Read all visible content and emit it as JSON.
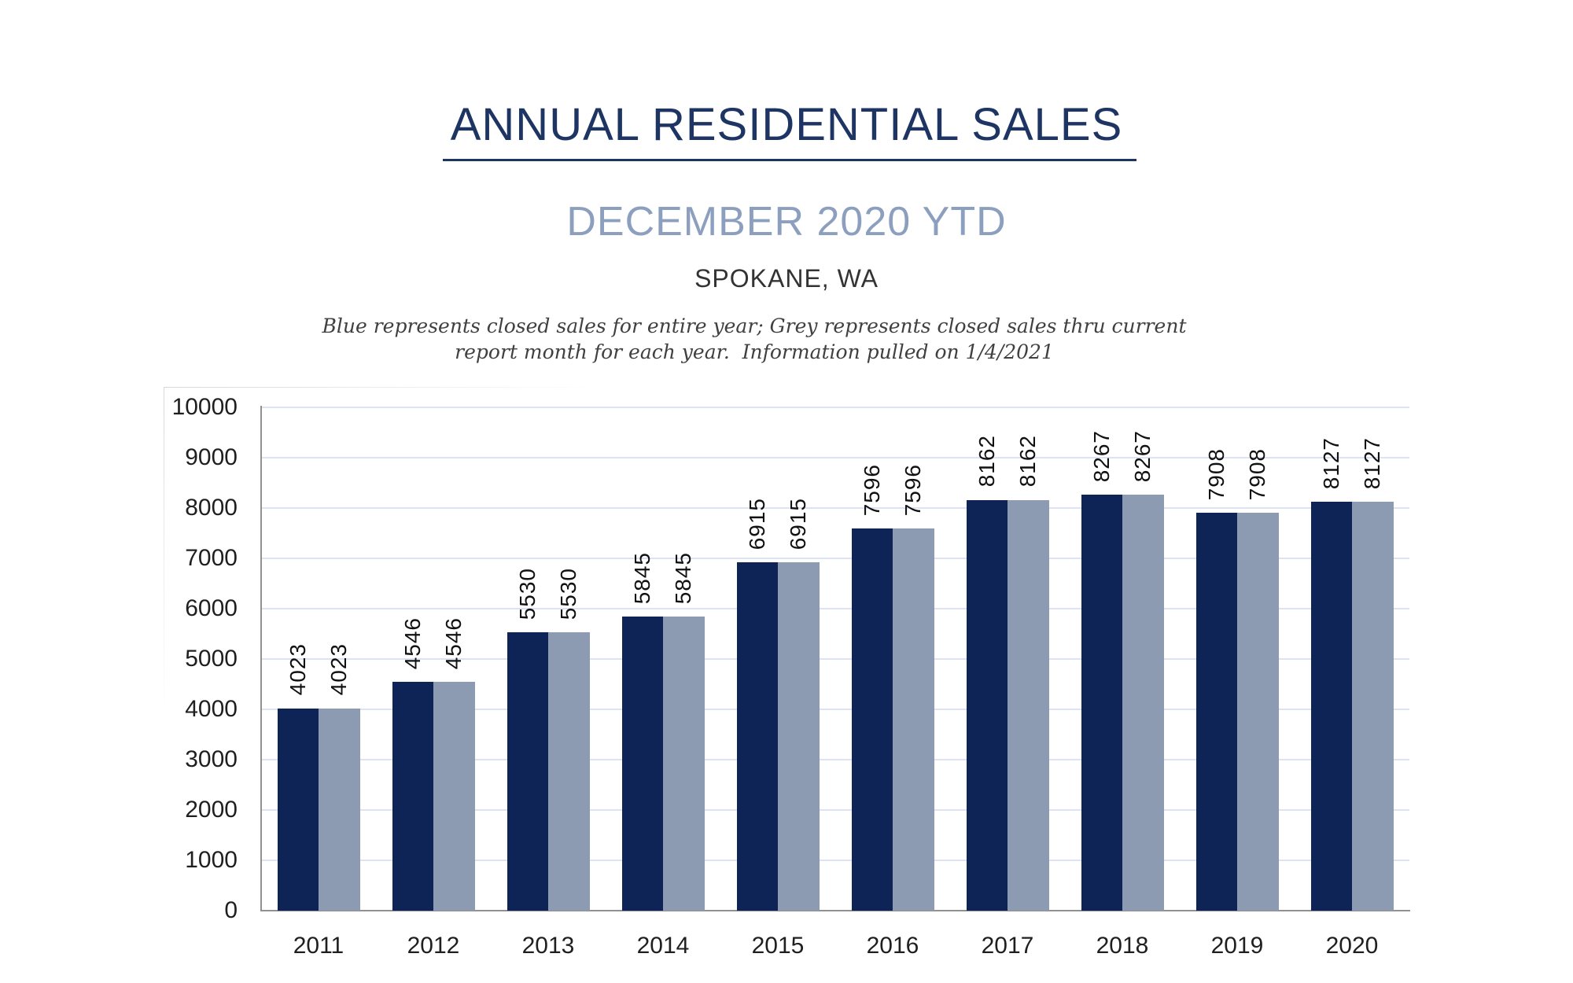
{
  "header": {
    "title": "ANNUAL RESIDENTIAL SALES",
    "subtitle": "DECEMBER 2020 YTD",
    "location": "SPOKANE, WA",
    "note_line1": "Blue represents closed sales for entire year; Grey represents closed sales thru current",
    "note_line2": "report month for each year.  Information pulled on 1/4/2021"
  },
  "chart_data": {
    "type": "bar",
    "title": "ANNUAL RESIDENTIAL SALES",
    "subtitle": "DECEMBER 2020 YTD",
    "region": "SPOKANE, WA",
    "categories": [
      "2011",
      "2012",
      "2013",
      "2014",
      "2015",
      "2016",
      "2017",
      "2018",
      "2019",
      "2020"
    ],
    "series": [
      {
        "name": "Closed sales for entire year (Blue)",
        "color": "#0E2356",
        "values": [
          4023,
          4546,
          5530,
          5845,
          6915,
          7596,
          8162,
          8267,
          7908,
          8127
        ]
      },
      {
        "name": "Closed sales thru current report month (Grey)",
        "color": "#8C9BB1",
        "values": [
          4023,
          4546,
          5530,
          5845,
          6915,
          7596,
          8162,
          8267,
          7908,
          8127
        ]
      }
    ],
    "data_labels": true,
    "data_label_rotation": 90,
    "xlabel": "",
    "ylabel": "",
    "ylim": [
      0,
      10000
    ],
    "ytick_step": 1000,
    "grid": "horizontal",
    "legend": "none",
    "gridline_color": "#DCE4F4",
    "axis_color": "#919191",
    "tick_label_color": "#1F1F1F"
  }
}
